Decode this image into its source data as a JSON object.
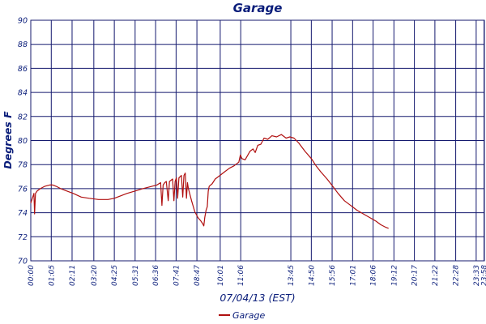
{
  "chart_data": {
    "type": "line",
    "title": "Garage",
    "xlabel": "07/04/13 (EST)",
    "ylabel": "Degrees F",
    "ylim": [
      70,
      90
    ],
    "yticks": [
      70,
      72,
      74,
      76,
      78,
      80,
      82,
      84,
      86,
      88,
      90
    ],
    "xlim": [
      0,
      1439
    ],
    "grid": true,
    "legend_position": "bottom-center",
    "x_unit": "minutes since 00:00",
    "xtick_labels": [
      "00:00",
      "01:05",
      "02:11",
      "03:20",
      "04:25",
      "05:31",
      "06:36",
      "07:41",
      "08:47",
      "10:01",
      "11:06",
      "13:45",
      "14:50",
      "15:56",
      "17:01",
      "18:06",
      "19:12",
      "20:17",
      "21:22",
      "22:28",
      "23:33",
      "23:58"
    ],
    "xtick_minutes": [
      0,
      65,
      131,
      200,
      265,
      331,
      396,
      461,
      527,
      601,
      666,
      825,
      890,
      956,
      1021,
      1086,
      1152,
      1217,
      1282,
      1348,
      1413,
      1438
    ],
    "series": [
      {
        "name": "Garage",
        "color": "#b01010",
        "points": [
          [
            0,
            74.8
          ],
          [
            5,
            75.2
          ],
          [
            10,
            75.6
          ],
          [
            12,
            73.9
          ],
          [
            15,
            75.6
          ],
          [
            20,
            75.8
          ],
          [
            30,
            76.0
          ],
          [
            45,
            76.2
          ],
          [
            60,
            76.3
          ],
          [
            70,
            76.3
          ],
          [
            80,
            76.2
          ],
          [
            95,
            76.0
          ],
          [
            115,
            75.8
          ],
          [
            135,
            75.6
          ],
          [
            160,
            75.3
          ],
          [
            185,
            75.2
          ],
          [
            215,
            75.1
          ],
          [
            245,
            75.1
          ],
          [
            265,
            75.2
          ],
          [
            285,
            75.4
          ],
          [
            305,
            75.6
          ],
          [
            330,
            75.8
          ],
          [
            355,
            76.0
          ],
          [
            370,
            76.1
          ],
          [
            385,
            76.2
          ],
          [
            400,
            76.3
          ],
          [
            412,
            76.5
          ],
          [
            416,
            74.6
          ],
          [
            420,
            76.3
          ],
          [
            425,
            76.5
          ],
          [
            430,
            76.6
          ],
          [
            436,
            75.0
          ],
          [
            440,
            76.6
          ],
          [
            445,
            76.7
          ],
          [
            450,
            76.8
          ],
          [
            454,
            75.0
          ],
          [
            458,
            76.6
          ],
          [
            462,
            76.9
          ],
          [
            466,
            75.2
          ],
          [
            470,
            76.9
          ],
          [
            478,
            77.1
          ],
          [
            482,
            75.3
          ],
          [
            486,
            77.1
          ],
          [
            490,
            77.3
          ],
          [
            494,
            75.2
          ],
          [
            497,
            76.5
          ],
          [
            500,
            76.0
          ],
          [
            510,
            75.0
          ],
          [
            520,
            74.1
          ],
          [
            530,
            73.6
          ],
          [
            540,
            73.3
          ],
          [
            545,
            73.1
          ],
          [
            549,
            72.9
          ],
          [
            552,
            73.6
          ],
          [
            556,
            74.2
          ],
          [
            560,
            74.5
          ],
          [
            563,
            75.8
          ],
          [
            566,
            76.2
          ],
          [
            575,
            76.4
          ],
          [
            585,
            76.8
          ],
          [
            600,
            77.1
          ],
          [
            615,
            77.4
          ],
          [
            630,
            77.7
          ],
          [
            645,
            77.9
          ],
          [
            660,
            78.2
          ],
          [
            665,
            78.8
          ],
          [
            670,
            78.5
          ],
          [
            680,
            78.4
          ],
          [
            695,
            79.1
          ],
          [
            705,
            79.3
          ],
          [
            712,
            79.0
          ],
          [
            720,
            79.6
          ],
          [
            730,
            79.7
          ],
          [
            740,
            80.2
          ],
          [
            752,
            80.1
          ],
          [
            765,
            80.4
          ],
          [
            780,
            80.3
          ],
          [
            795,
            80.5
          ],
          [
            810,
            80.2
          ],
          [
            822,
            80.3
          ],
          [
            835,
            80.2
          ],
          [
            850,
            79.8
          ],
          [
            870,
            79.1
          ],
          [
            890,
            78.5
          ],
          [
            905,
            77.9
          ],
          [
            920,
            77.4
          ],
          [
            940,
            76.8
          ],
          [
            955,
            76.3
          ],
          [
            975,
            75.6
          ],
          [
            995,
            75.0
          ],
          [
            1015,
            74.6
          ],
          [
            1035,
            74.2
          ],
          [
            1055,
            73.9
          ],
          [
            1075,
            73.6
          ],
          [
            1095,
            73.3
          ],
          [
            1110,
            73.0
          ],
          [
            1125,
            72.8
          ],
          [
            1135,
            72.7
          ]
        ]
      }
    ]
  }
}
